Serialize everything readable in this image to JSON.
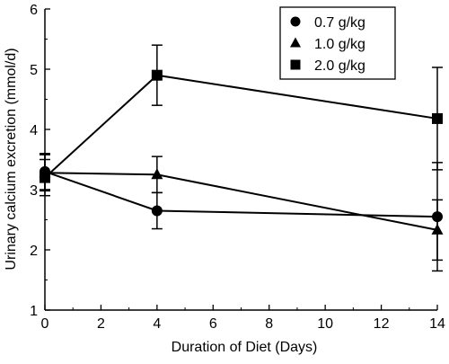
{
  "chart_data": {
    "type": "line",
    "title": "",
    "xlabel": "Duration of Diet (Days)",
    "ylabel": "Urinary calcium excretion (mmol/d)",
    "xlim": [
      0,
      14
    ],
    "ylim": [
      1,
      6
    ],
    "xticks": [
      0,
      2,
      4,
      6,
      8,
      10,
      12,
      14
    ],
    "yticks": [
      1,
      2,
      3,
      4,
      5,
      6
    ],
    "grid": false,
    "legend_position": "top-right",
    "x": [
      0,
      4,
      14
    ],
    "series": [
      {
        "name": "0.7 g/kg",
        "marker": "circle",
        "values": [
          3.3,
          2.65,
          2.55
        ],
        "errors": [
          0.3,
          0.3,
          0.9
        ]
      },
      {
        "name": "1.0 g/kg",
        "marker": "triangle",
        "values": [
          3.28,
          3.25,
          2.33
        ],
        "errors": [
          0.3,
          0.3,
          0.5
        ]
      },
      {
        "name": "2.0 g/kg",
        "marker": "square",
        "values": [
          3.2,
          4.9,
          4.18
        ],
        "errors": [
          0.3,
          0.5,
          0.85
        ]
      }
    ]
  }
}
